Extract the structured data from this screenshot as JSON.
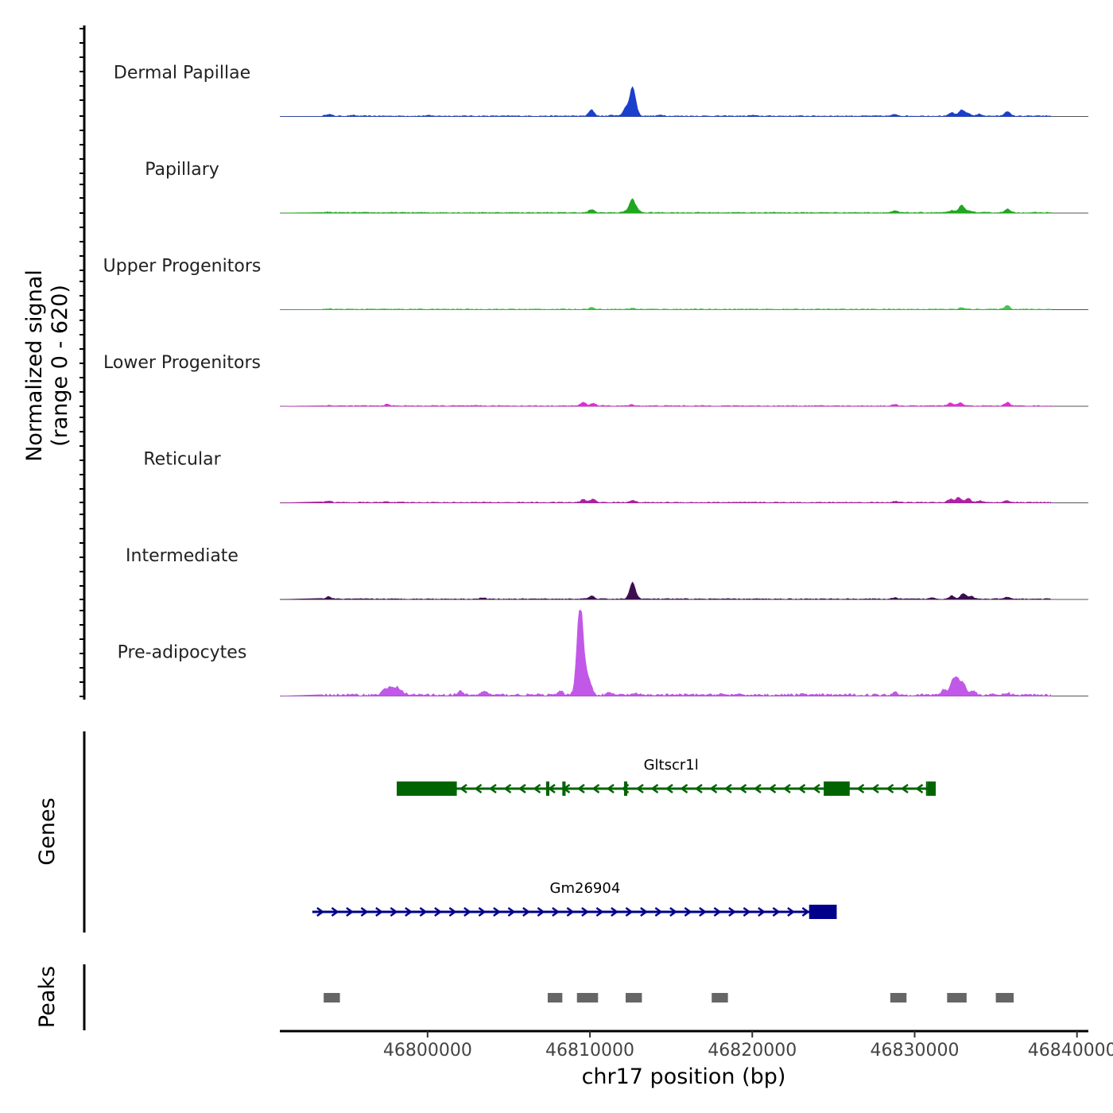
{
  "chart_data": {
    "type": "area",
    "title": "",
    "ylabel": "Normalized signal",
    "ylabel_range": "(range 0 - 620)",
    "ylim": [
      0,
      620
    ],
    "xlabel": "chr17 position (bp)",
    "xlim": [
      46790900,
      46840700
    ],
    "xticks": [
      46800000,
      46810000,
      46820000,
      46830000,
      46840000
    ],
    "xtick_labels": [
      "46800000",
      "46810000",
      "46820000",
      "46830000",
      "46840000"
    ],
    "tracks": [
      {
        "name": "Dermal Papillae",
        "color": "#1a3fcc",
        "peaks": [
          [
            46793900,
            14
          ],
          [
            46795400,
            5
          ],
          [
            46800000,
            4
          ],
          [
            46810100,
            45
          ],
          [
            46811400,
            6
          ],
          [
            46812200,
            60
          ],
          [
            46812600,
            185
          ],
          [
            46812800,
            50
          ],
          [
            46814400,
            8
          ],
          [
            46820000,
            5
          ],
          [
            46828800,
            12
          ],
          [
            46832300,
            25
          ],
          [
            46832900,
            45
          ],
          [
            46833300,
            20
          ],
          [
            46834000,
            14
          ],
          [
            46835700,
            35
          ]
        ]
      },
      {
        "name": "Papillary",
        "color": "#1fa81f",
        "peaks": [
          [
            46793900,
            4
          ],
          [
            46810100,
            22
          ],
          [
            46812200,
            12
          ],
          [
            46812600,
            95
          ],
          [
            46812900,
            22
          ],
          [
            46828800,
            12
          ],
          [
            46832300,
            16
          ],
          [
            46832900,
            55
          ],
          [
            46833400,
            15
          ],
          [
            46835700,
            27
          ]
        ]
      },
      {
        "name": "Upper Progenitors",
        "color": "#44c44f",
        "peaks": [
          [
            46793900,
            3
          ],
          [
            46810100,
            12
          ],
          [
            46812600,
            8
          ],
          [
            46832900,
            10
          ],
          [
            46835700,
            28
          ]
        ]
      },
      {
        "name": "Lower Progenitors",
        "color": "#e22bd8",
        "peaks": [
          [
            46793900,
            3
          ],
          [
            46797500,
            10
          ],
          [
            46809600,
            25
          ],
          [
            46810200,
            18
          ],
          [
            46812600,
            8
          ],
          [
            46828800,
            8
          ],
          [
            46832200,
            20
          ],
          [
            46832800,
            22
          ],
          [
            46835700,
            25
          ]
        ]
      },
      {
        "name": "Reticular",
        "color": "#b51ca8",
        "peaks": [
          [
            46793900,
            12
          ],
          [
            46797500,
            6
          ],
          [
            46809600,
            22
          ],
          [
            46810200,
            24
          ],
          [
            46812600,
            16
          ],
          [
            46828800,
            8
          ],
          [
            46832200,
            22
          ],
          [
            46832700,
            38
          ],
          [
            46833300,
            28
          ],
          [
            46834000,
            12
          ],
          [
            46835700,
            14
          ]
        ]
      },
      {
        "name": "Intermediate",
        "color": "#3c0e4e",
        "peaks": [
          [
            46793900,
            17
          ],
          [
            46803400,
            8
          ],
          [
            46810100,
            22
          ],
          [
            46812600,
            110
          ],
          [
            46812800,
            20
          ],
          [
            46828800,
            8
          ],
          [
            46831100,
            9
          ],
          [
            46832300,
            24
          ],
          [
            46833000,
            42
          ],
          [
            46833500,
            18
          ],
          [
            46835700,
            12
          ]
        ]
      },
      {
        "name": "Pre-adipocytes",
        "color": "#c158e8",
        "peaks": [
          [
            46797300,
            35
          ],
          [
            46797700,
            60
          ],
          [
            46798100,
            55
          ],
          [
            46798500,
            20
          ],
          [
            46802000,
            25
          ],
          [
            46803500,
            30
          ],
          [
            46808200,
            25
          ],
          [
            46809200,
            100
          ],
          [
            46809400,
            620
          ],
          [
            46809700,
            150
          ],
          [
            46810000,
            75
          ],
          [
            46811200,
            15
          ],
          [
            46812700,
            10
          ],
          [
            46818000,
            8
          ],
          [
            46823000,
            6
          ],
          [
            46828800,
            20
          ],
          [
            46831800,
            40
          ],
          [
            46832300,
            80
          ],
          [
            46832600,
            120
          ],
          [
            46833000,
            90
          ],
          [
            46833600,
            30
          ],
          [
            46835700,
            15
          ]
        ]
      }
    ],
    "genes": [
      {
        "name": "Gltscr1l",
        "strand": "-",
        "start": 46798100,
        "end": 46831300,
        "color": "#006400",
        "exons": [
          [
            46798100,
            46801800
          ],
          [
            46807300,
            46807500
          ],
          [
            46808300,
            46808500
          ],
          [
            46812100,
            46812300
          ],
          [
            46824400,
            46826000
          ],
          [
            46830700,
            46830800
          ],
          [
            46830800,
            46831300
          ]
        ]
      },
      {
        "name": "Gm26904",
        "strand": "+",
        "start": 46792900,
        "end": 46825200,
        "color": "#00008b",
        "exons": [
          [
            46823500,
            46825200
          ]
        ]
      }
    ],
    "peaks_track_label": "Peaks",
    "genes_track_label": "Genes",
    "peak_regions": [
      [
        46793600,
        46794600
      ],
      [
        46807400,
        46808300
      ],
      [
        46809200,
        46810500
      ],
      [
        46812200,
        46813200
      ],
      [
        46817500,
        46818500
      ],
      [
        46828500,
        46829500
      ],
      [
        46832000,
        46833200
      ],
      [
        46835000,
        46836100
      ]
    ]
  }
}
